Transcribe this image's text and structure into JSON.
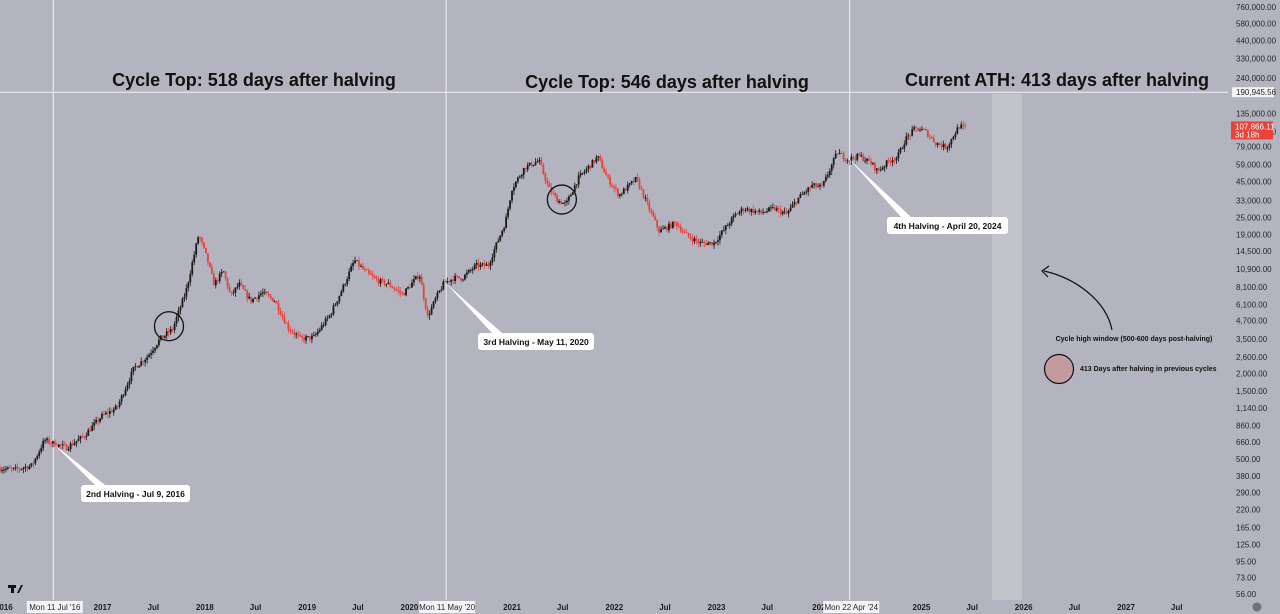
{
  "chart_data": {
    "type": "line",
    "style": "candlestick",
    "scale": "log",
    "title": "",
    "xlabel": "",
    "ylabel": "",
    "ylim": [
      56,
      760000
    ],
    "xlim": [
      "2016-01-01",
      "2027-12-31"
    ],
    "y_ticks": [
      "760,000.00",
      "580,000.00",
      "440,000.00",
      "330,000.00",
      "240,000.00",
      "135,000.00",
      "101,000.00",
      "79,000.00",
      "59,000.00",
      "45,000.00",
      "33,000.00",
      "25,000.00",
      "19,000.00",
      "14,500.00",
      "10,900.00",
      "8,100.00",
      "6,100.00",
      "4,700.00",
      "3,500.00",
      "2,600.00",
      "2,000.00",
      "1,500.00",
      "1,140.00",
      "860.00",
      "660.00",
      "500.00",
      "380.00",
      "290.00",
      "220.00",
      "165.00",
      "125.00",
      "95.00",
      "73.00",
      "56.00"
    ],
    "x_ticks": [
      {
        "label": "016",
        "date": "2016-01-01"
      },
      {
        "label": "2017",
        "date": "2017-01-01"
      },
      {
        "label": "Jul",
        "date": "2017-07-01"
      },
      {
        "label": "2018",
        "date": "2018-01-01"
      },
      {
        "label": "Jul",
        "date": "2018-07-01"
      },
      {
        "label": "2019",
        "date": "2019-01-01"
      },
      {
        "label": "Jul",
        "date": "2019-07-01"
      },
      {
        "label": "2020",
        "date": "2020-01-01"
      },
      {
        "label": "2021",
        "date": "2021-01-01"
      },
      {
        "label": "Jul",
        "date": "2021-07-01"
      },
      {
        "label": "2022",
        "date": "2022-01-01"
      },
      {
        "label": "Jul",
        "date": "2022-07-01"
      },
      {
        "label": "2023",
        "date": "2023-01-01"
      },
      {
        "label": "Jul",
        "date": "2023-07-01"
      },
      {
        "label": "202",
        "date": "2024-01-01"
      },
      {
        "label": "2025",
        "date": "2025-01-01"
      },
      {
        "label": "Jul",
        "date": "2025-07-01"
      },
      {
        "label": "2026",
        "date": "2026-01-01"
      },
      {
        "label": "Jul",
        "date": "2026-07-01"
      },
      {
        "label": "2027",
        "date": "2027-01-01"
      },
      {
        "label": "Jul",
        "date": "2027-07-01"
      }
    ],
    "x_highlight_labels": [
      {
        "label": "Mon 11 Jul '16",
        "date": "2016-07-11"
      },
      {
        "label": "Mon 11 May '20",
        "date": "2020-05-11"
      },
      {
        "label": "Mon 22 Apr '24",
        "date": "2024-04-22"
      }
    ],
    "series": [
      {
        "x": [
          "2016-01-01",
          "2016-03-01",
          "2016-05-01",
          "2016-06-15",
          "2016-07-09",
          "2016-09-01",
          "2016-11-01",
          "2017-01-05",
          "2017-03-01",
          "2017-05-01",
          "2017-06-15",
          "2017-08-01",
          "2017-09-15",
          "2017-11-01",
          "2017-12-17",
          "2018-01-15",
          "2018-02-10",
          "2018-03-15",
          "2018-04-10",
          "2018-05-10",
          "2018-06-20",
          "2018-08-01",
          "2018-09-15",
          "2018-11-01",
          "2018-12-15",
          "2019-02-01",
          "2019-04-01",
          "2019-05-15",
          "2019-06-26",
          "2019-08-01",
          "2019-09-15",
          "2019-10-25",
          "2019-12-15",
          "2020-02-13",
          "2020-03-13",
          "2020-04-15",
          "2020-05-11",
          "2020-06-15",
          "2020-07-15",
          "2020-09-01",
          "2020-10-15",
          "2020-11-15",
          "2020-12-15",
          "2021-01-08",
          "2021-02-21",
          "2021-04-14",
          "2021-05-20",
          "2021-06-20",
          "2021-07-20",
          "2021-09-01",
          "2021-11-10",
          "2021-12-15",
          "2022-01-25",
          "2022-03-28",
          "2022-05-12",
          "2022-06-18",
          "2022-08-15",
          "2022-09-20",
          "2022-11-10",
          "2022-12-30",
          "2023-03-15",
          "2023-04-15",
          "2023-06-15",
          "2023-08-01",
          "2023-09-15",
          "2023-10-25",
          "2023-12-15",
          "2024-01-20",
          "2024-03-14",
          "2024-04-20",
          "2024-06-01",
          "2024-07-15",
          "2024-08-05",
          "2024-09-15",
          "2024-10-15",
          "2024-11-12",
          "2024-12-17",
          "2025-01-20",
          "2025-02-28",
          "2025-04-08",
          "2025-05-22",
          "2025-06-10"
        ],
        "values": [
          430,
          420,
          450,
          680,
          650,
          600,
          720,
          1000,
          1150,
          2200,
          2600,
          3500,
          4100,
          7500,
          19000,
          13000,
          8500,
          10500,
          7000,
          8500,
          6500,
          7400,
          6500,
          4200,
          3500,
          3600,
          5200,
          8000,
          12500,
          10500,
          9000,
          8500,
          7200,
          10000,
          5000,
          7000,
          8700,
          9400,
          9400,
          11500,
          11500,
          16500,
          23000,
          40000,
          56000,
          63000,
          40000,
          33000,
          31000,
          47000,
          67000,
          47000,
          36000,
          47000,
          29000,
          20000,
          23000,
          19000,
          16500,
          16600,
          26000,
          29000,
          27000,
          29000,
          26500,
          34000,
          42000,
          41000,
          72000,
          64000,
          68000,
          60000,
          53000,
          63000,
          67000,
          89000,
          106000,
          102000,
          84000,
          78000,
          110000,
          107000
        ]
      }
    ],
    "reference_level": {
      "label": "190,945.56",
      "value": 190945.56
    },
    "last_price": {
      "price": "107,866.11",
      "countdown": "3d 18h",
      "value": 107866.11
    },
    "halving_lines": [
      "2016-07-09",
      "2020-05-11",
      "2024-04-20"
    ],
    "shaded_window": {
      "from": "2025-09-10",
      "to": "2025-12-25"
    },
    "circles": [
      {
        "date": "2017-08-26",
        "value": 4300
      },
      {
        "date": "2021-06-28",
        "value": 33500
      }
    ],
    "annotations": [
      {
        "text": "Cycle Top: 518 days after halving"
      },
      {
        "text": "Cycle Top: 546 days after halving"
      },
      {
        "text": "Current ATH: 413 days after halving"
      },
      {
        "text": "2nd Halving - Jul 9, 2016"
      },
      {
        "text": "3rd Halving - May 11, 2020"
      },
      {
        "text": "4th Halving - April 20, 2024"
      },
      {
        "text": "Cycle high window (500-600 days post-halving)"
      },
      {
        "text": "413 Days after halving in previous cycles"
      }
    ],
    "grid": false,
    "colors": {
      "background": "#b3b4bf",
      "up_candle": "#1a1a1a",
      "down_candle": "#e8423a",
      "badge": "#e8423a"
    }
  }
}
